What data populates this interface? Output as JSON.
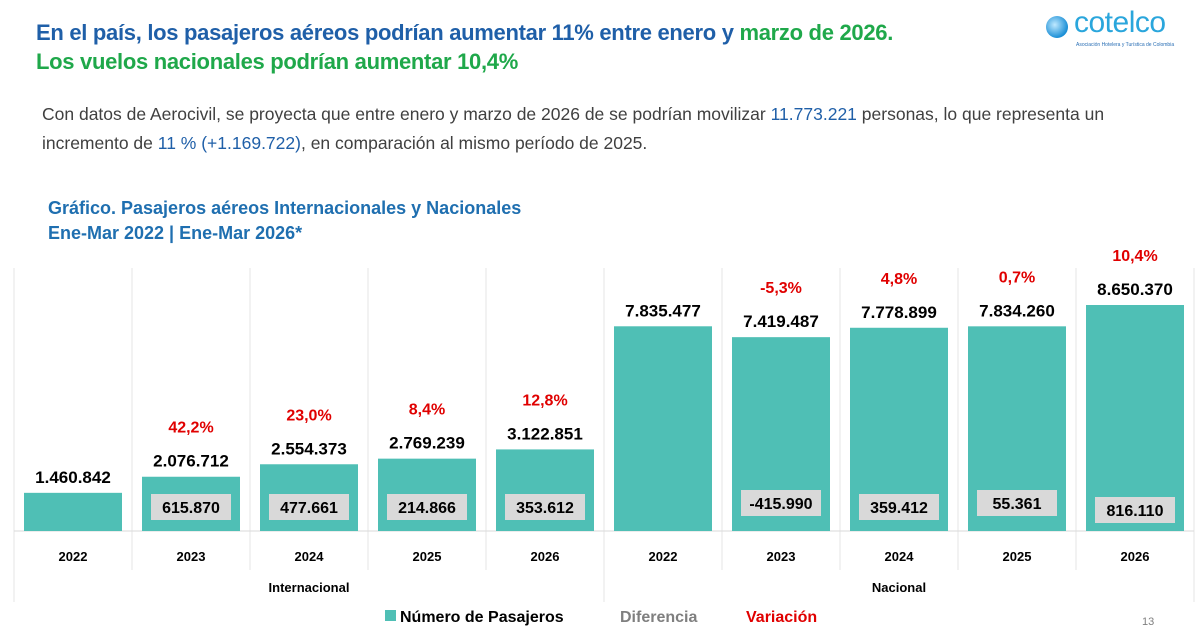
{
  "header": {
    "title_line1_blue": "En el país, los pasajeros aéreos podrían aumentar 11% entre enero y",
    "title_line1_green": "marzo de 2026.",
    "title_line2": "Los vuelos nacionales podrían aumentar 10,4%"
  },
  "logo": {
    "name": "cotelco",
    "subtitle": "Asociación Hotelera y Turística de Colombia"
  },
  "paragraph": {
    "p1": "Con datos de Aerocivil, se proyecta que entre enero y marzo de 2026 de se podrían movilizar",
    "h1": "11.773.221",
    "p2": "personas, lo que representa un incremento de",
    "h2": "11 % (+1.169.722)",
    "p3": ", en comparación al mismo período de 2025."
  },
  "chart_title": {
    "line1": "Gráfico. Pasajeros aéreos Internacionales y Nacionales",
    "line2": "Ene-Mar 2022 | Ene-Mar 2026*"
  },
  "page_number": "13",
  "colors": {
    "bar": "#4fbfb5",
    "diff_box": "#d9d9d9",
    "variation": "#e00000",
    "title_blue": "#1f5fa8",
    "title_green": "#1fa84a"
  },
  "chart_data": {
    "type": "bar",
    "groups": [
      "Internacional",
      "Nacional"
    ],
    "categories": [
      "2022",
      "2023",
      "2024",
      "2025",
      "2026",
      "2022",
      "2023",
      "2024",
      "2025",
      "2026"
    ],
    "series": [
      {
        "name": "Número de Pasajeros",
        "values": [
          1460842,
          2076712,
          2554373,
          2769239,
          3122851,
          7835477,
          7419487,
          7778899,
          7834260,
          8650370
        ],
        "labels": [
          "1.460.842",
          "2.076.712",
          "2.554.373",
          "2.769.239",
          "3.122.851",
          "7.835.477",
          "7.419.487",
          "7.778.899",
          "7.834.260",
          "8.650.370"
        ]
      },
      {
        "name": "Diferencia",
        "values": [
          null,
          615870,
          477661,
          214866,
          353612,
          null,
          -415990,
          359412,
          55361,
          816110
        ],
        "labels": [
          "",
          "615.870",
          "477.661",
          "214.866",
          "353.612",
          "",
          "-415.990",
          "359.412",
          "55.361",
          "816.110"
        ]
      },
      {
        "name": "Variación",
        "values": [
          null,
          42.2,
          23.0,
          8.4,
          12.8,
          null,
          -5.3,
          4.8,
          0.7,
          10.4
        ],
        "labels": [
          "",
          "42,2%",
          "23,0%",
          "8,4%",
          "12,8%",
          "",
          "-5,3%",
          "4,8%",
          "0,7%",
          "10,4%"
        ]
      }
    ],
    "ylim": [
      0,
      8650370
    ],
    "legend": "bottom",
    "grid": false
  }
}
